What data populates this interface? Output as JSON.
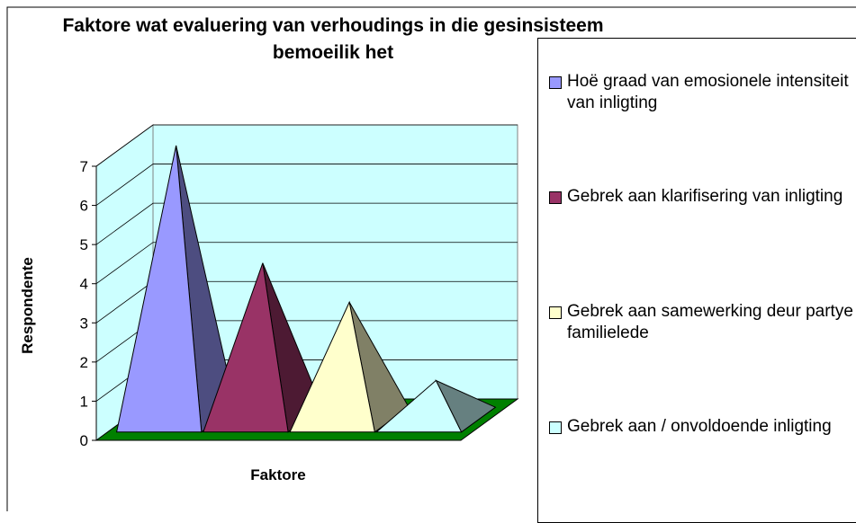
{
  "chart_data": {
    "type": "pyramid3d",
    "title": "Faktore wat evaluering van verhoudings in die gesinsisteem bemoeilik het",
    "x_label": "Faktore",
    "y_label": "Respondente",
    "ylim": [
      0,
      7
    ],
    "yticks": [
      0,
      1,
      2,
      3,
      4,
      5,
      6,
      7
    ],
    "grid": true,
    "legend": "right",
    "series": [
      {
        "name": "Hoë graad van emosionele intensiteit van inligting",
        "color": "#9999ff",
        "values": [
          7
        ]
      },
      {
        "name": "Gebrek aan klarifisering van inligting",
        "color": "#993366",
        "values": [
          4
        ]
      },
      {
        "name": "Gebrek aan samewerking deur partye en familielede",
        "color": "#ffffcc",
        "values": [
          3
        ]
      },
      {
        "name": "Gebrek aan / onvoldoende inligting",
        "color": "#ccffff",
        "values": [
          1
        ]
      }
    ]
  }
}
